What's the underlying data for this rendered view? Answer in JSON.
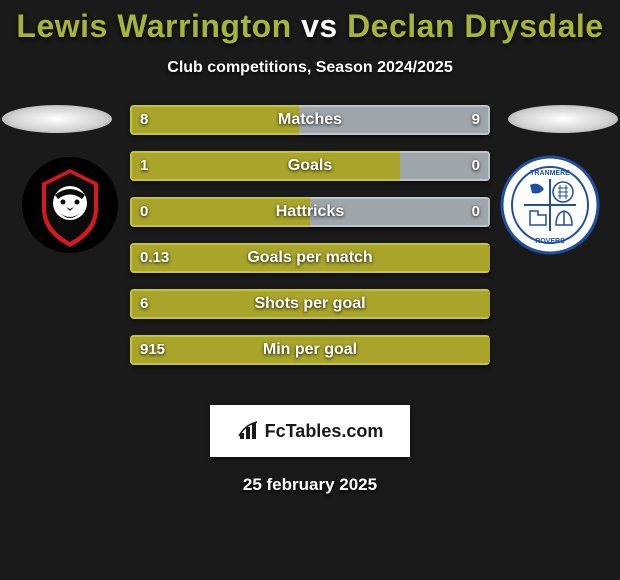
{
  "title": {
    "p1": "Lewis Warrington",
    "vs": " vs ",
    "p2": "Declan Drysdale",
    "p1_color": "#a7b43a",
    "p2_color": "#a7b43a",
    "vs_color": "#ffffff"
  },
  "subtitle": "Club competitions, Season 2024/2025",
  "colors": {
    "left_fill": "#a8a52a",
    "left_border": "#c5c33a",
    "right_fill": "#9fa6ab",
    "right_border": "#bfc5c9",
    "bg": "#1a1a1a"
  },
  "stats": [
    {
      "label": "Matches",
      "left_val": "8",
      "right_val": "9",
      "left_pct": 47,
      "right_pct": 53
    },
    {
      "label": "Goals",
      "left_val": "1",
      "right_val": "0",
      "left_pct": 75,
      "right_pct": 25
    },
    {
      "label": "Hattricks",
      "left_val": "0",
      "right_val": "0",
      "left_pct": 50,
      "right_pct": 50
    },
    {
      "label": "Goals per match",
      "left_val": "0.13",
      "right_val": "",
      "left_pct": 100,
      "right_pct": 0
    },
    {
      "label": "Shots per goal",
      "left_val": "6",
      "right_val": "",
      "left_pct": 100,
      "right_pct": 0
    },
    {
      "label": "Min per goal",
      "left_val": "915",
      "right_val": "",
      "left_pct": 100,
      "right_pct": 0
    }
  ],
  "footer_brand": "FcTables.com",
  "footer_date": "25 february 2025"
}
